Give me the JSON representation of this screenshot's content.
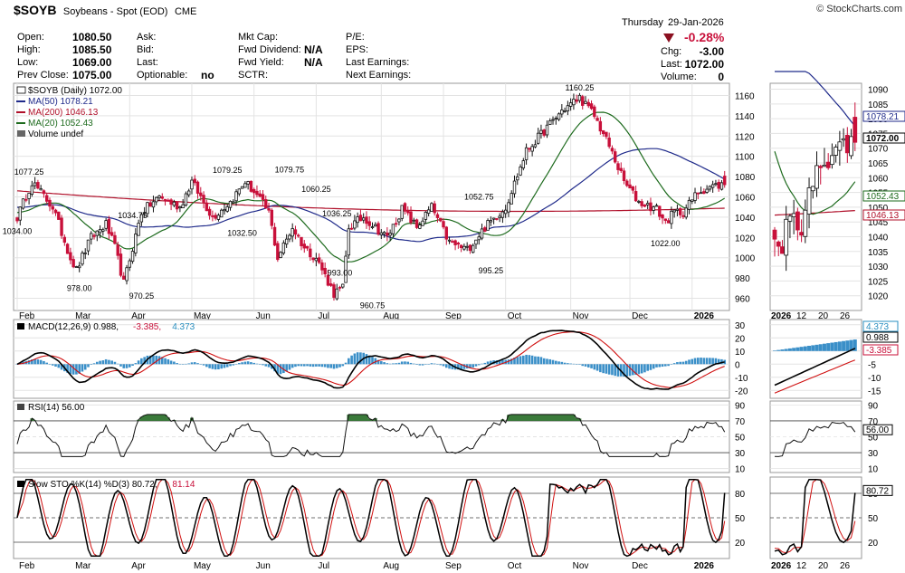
{
  "header": {
    "symbol": "$SOYB",
    "name": "Soybeans - Spot (EOD)",
    "exchange": "CME",
    "copyright": "© StockCharts.com",
    "day": "Thursday",
    "date": "29-Jan-2026",
    "fields_left": [
      {
        "label": "Open:",
        "value": "1080.50"
      },
      {
        "label": "High:",
        "value": "1085.50"
      },
      {
        "label": "Low:",
        "value": "1069.00"
      },
      {
        "label": "Prev Close:",
        "value": "1075.00"
      }
    ],
    "fields_mid": [
      {
        "label": "Ask:",
        "value": ""
      },
      {
        "label": "Bid:",
        "value": ""
      },
      {
        "label": "Last:",
        "value": ""
      },
      {
        "label": "Optionable:",
        "value": "no"
      }
    ],
    "fields_mid2": [
      {
        "label": "Mkt Cap:",
        "value": ""
      },
      {
        "label": "Fwd Dividend:",
        "value": "N/A"
      },
      {
        "label": "Fwd Yield:",
        "value": "N/A"
      },
      {
        "label": "SCTR:",
        "value": ""
      }
    ],
    "fields_right": [
      {
        "label": "P/E:",
        "value": ""
      },
      {
        "label": "EPS:",
        "value": ""
      },
      {
        "label": "Last Earnings:",
        "value": ""
      },
      {
        "label": "Next Earnings:",
        "value": ""
      }
    ],
    "pct_change": "-0.28%",
    "chg_label": "Chg:",
    "chg": "-3.00",
    "last_label": "Last:",
    "last": "1072.00",
    "volume_label": "Volume:",
    "volume": "0",
    "down_color": "#c8103a"
  },
  "chart_data": [
    {
      "type": "candlestick",
      "panel": "price",
      "legend": [
        {
          "text": "$SOYB (Daily) 1072.00",
          "color": "#000000"
        },
        {
          "text": "MA(50) 1078.21",
          "color": "#1f2a8a"
        },
        {
          "text": "MA(200) 1046.13",
          "color": "#b0102a"
        },
        {
          "text": "MA(20) 1052.43",
          "color": "#1e6b1e"
        },
        {
          "text": "Volume undef",
          "color": "#000000"
        }
      ],
      "y_ticks": [
        960,
        980,
        1000,
        1020,
        1040,
        1060,
        1080,
        1100,
        1120,
        1140,
        1160
      ],
      "ylim": [
        948,
        1172
      ],
      "x_month_labels": [
        "Feb",
        "Mar",
        "Apr",
        "May",
        "Jun",
        "Jul",
        "Aug",
        "Sep",
        "Oct",
        "Nov",
        "Dec",
        "2026"
      ],
      "x_month_index": [
        0,
        19,
        38,
        59,
        80,
        101,
        123,
        144,
        165,
        187,
        207,
        228
      ],
      "close_anchors": [
        [
          0,
          1040
        ],
        [
          5,
          1075
        ],
        [
          12,
          1050
        ],
        [
          18,
          1000
        ],
        [
          20,
          988
        ],
        [
          25,
          1020
        ],
        [
          30,
          1033
        ],
        [
          33,
          1010
        ],
        [
          36,
          975
        ],
        [
          42,
          1045
        ],
        [
          48,
          1060
        ],
        [
          55,
          1050
        ],
        [
          59,
          1075
        ],
        [
          66,
          1040
        ],
        [
          72,
          1055
        ],
        [
          77,
          1075
        ],
        [
          80,
          1065
        ],
        [
          85,
          1045
        ],
        [
          88,
          1000
        ],
        [
          93,
          1030
        ],
        [
          97,
          1010
        ],
        [
          101,
          1000
        ],
        [
          107,
          965
        ],
        [
          110,
          970
        ],
        [
          112,
          1030
        ],
        [
          117,
          1040
        ],
        [
          125,
          1020
        ],
        [
          130,
          1048
        ],
        [
          135,
          1030
        ],
        [
          140,
          1050
        ],
        [
          146,
          1015
        ],
        [
          152,
          1008
        ],
        [
          158,
          1030
        ],
        [
          165,
          1050
        ],
        [
          172,
          1105
        ],
        [
          178,
          1125
        ],
        [
          184,
          1145
        ],
        [
          190,
          1158
        ],
        [
          195,
          1140
        ],
        [
          200,
          1110
        ],
        [
          205,
          1075
        ],
        [
          210,
          1055
        ],
        [
          216,
          1048
        ],
        [
          219,
          1035
        ],
        [
          222,
          1045
        ],
        [
          225,
          1045
        ],
        [
          230,
          1065
        ],
        [
          234,
          1070
        ],
        [
          238,
          1072
        ]
      ],
      "annotations": [
        {
          "text": "1077.25",
          "i": 4,
          "v": 1077.25,
          "pos": "above"
        },
        {
          "text": "1034.00",
          "i": 0,
          "v": 1034.0,
          "pos": "below"
        },
        {
          "text": "978.00",
          "i": 21,
          "v": 978.0,
          "pos": "below"
        },
        {
          "text": "1034.75",
          "i": 39,
          "v": 1034.75,
          "pos": "above"
        },
        {
          "text": "970.25",
          "i": 42,
          "v": 970.25,
          "pos": "below"
        },
        {
          "text": "1079.25",
          "i": 71,
          "v": 1079.25,
          "pos": "above"
        },
        {
          "text": "1032.50",
          "i": 76,
          "v": 1032.5,
          "pos": "below"
        },
        {
          "text": "1079.75",
          "i": 92,
          "v": 1079.75,
          "pos": "above"
        },
        {
          "text": "1060.25",
          "i": 101,
          "v": 1060.25,
          "pos": "above"
        },
        {
          "text": "1036.25",
          "i": 108,
          "v": 1036.25,
          "pos": "above"
        },
        {
          "text": "993.00",
          "i": 109,
          "v": 993.0,
          "pos": "below"
        },
        {
          "text": "960.75",
          "i": 120,
          "v": 960.75,
          "pos": "below"
        },
        {
          "text": "1052.75",
          "i": 156,
          "v": 1052.75,
          "pos": "above"
        },
        {
          "text": "995.25",
          "i": 160,
          "v": 995.25,
          "pos": "below"
        },
        {
          "text": "1160.25",
          "i": 190,
          "v": 1160.25,
          "pos": "above"
        },
        {
          "text": "1022.00",
          "i": 219,
          "v": 1022.0,
          "pos": "below"
        }
      ],
      "ma_labels": [
        {
          "text": "1078.21",
          "color": "#1f2a8a"
        },
        {
          "text": "1072.00",
          "color": "#000000"
        },
        {
          "text": "1052.43",
          "color": "#1e6b1e"
        },
        {
          "text": "1046.13",
          "color": "#b0102a"
        }
      ],
      "zoom_y_ticks": [
        1020,
        1025,
        1030,
        1035,
        1040,
        1045,
        1050,
        1055,
        1060,
        1065,
        1070,
        1075,
        1080,
        1085,
        1090
      ],
      "zoom_ylim": [
        1015,
        1092
      ],
      "zoom_x_labels": [
        "2026",
        "12",
        "20",
        "26"
      ]
    },
    {
      "type": "line",
      "panel": "macd",
      "legend": [
        {
          "text": "MACD(12,26,9) 0.988,",
          "color": "#000000"
        },
        {
          "text": "-3.385,",
          "color": "#c8103a"
        },
        {
          "text": "4.373",
          "color": "#2a8fc0"
        }
      ],
      "y_ticks": [
        -20,
        -10,
        0,
        10,
        20,
        30
      ],
      "ylim": [
        -26,
        34
      ],
      "zoom_y_ticks": [
        -15,
        -10,
        -5,
        0,
        5,
        10
      ],
      "zoom_ylim": [
        -18,
        12
      ],
      "right_labels": [
        {
          "text": "4.373",
          "color": "#2a8fc0"
        },
        {
          "text": "0.988",
          "color": "#000000"
        },
        {
          "text": "-3.385",
          "color": "#c8103a"
        }
      ]
    },
    {
      "type": "line",
      "panel": "rsi",
      "legend": [
        {
          "text": "RSI(14) 56.00",
          "color": "#000000"
        }
      ],
      "y_ticks": [
        10,
        30,
        50,
        70,
        90
      ],
      "ylim": [
        5,
        95
      ],
      "right_label": "56.00"
    },
    {
      "type": "line",
      "panel": "sto",
      "legend": [
        {
          "text": "Slow STO %K(14) %D(3) 80.72,",
          "color": "#000000"
        },
        {
          "text": "81.14",
          "color": "#c8103a"
        }
      ],
      "y_ticks": [
        20,
        50,
        80
      ],
      "ylim": [
        0,
        100
      ],
      "right_label": "80.72"
    }
  ],
  "colors": {
    "up": "#111111",
    "down": "#c8103a",
    "ma50": "#1f2a8a",
    "ma200": "#b0102a",
    "ma20": "#1e6b1e",
    "macd_hist": "#3a8fc8",
    "signal": "#d01010",
    "grid": "#e3e3e3"
  }
}
